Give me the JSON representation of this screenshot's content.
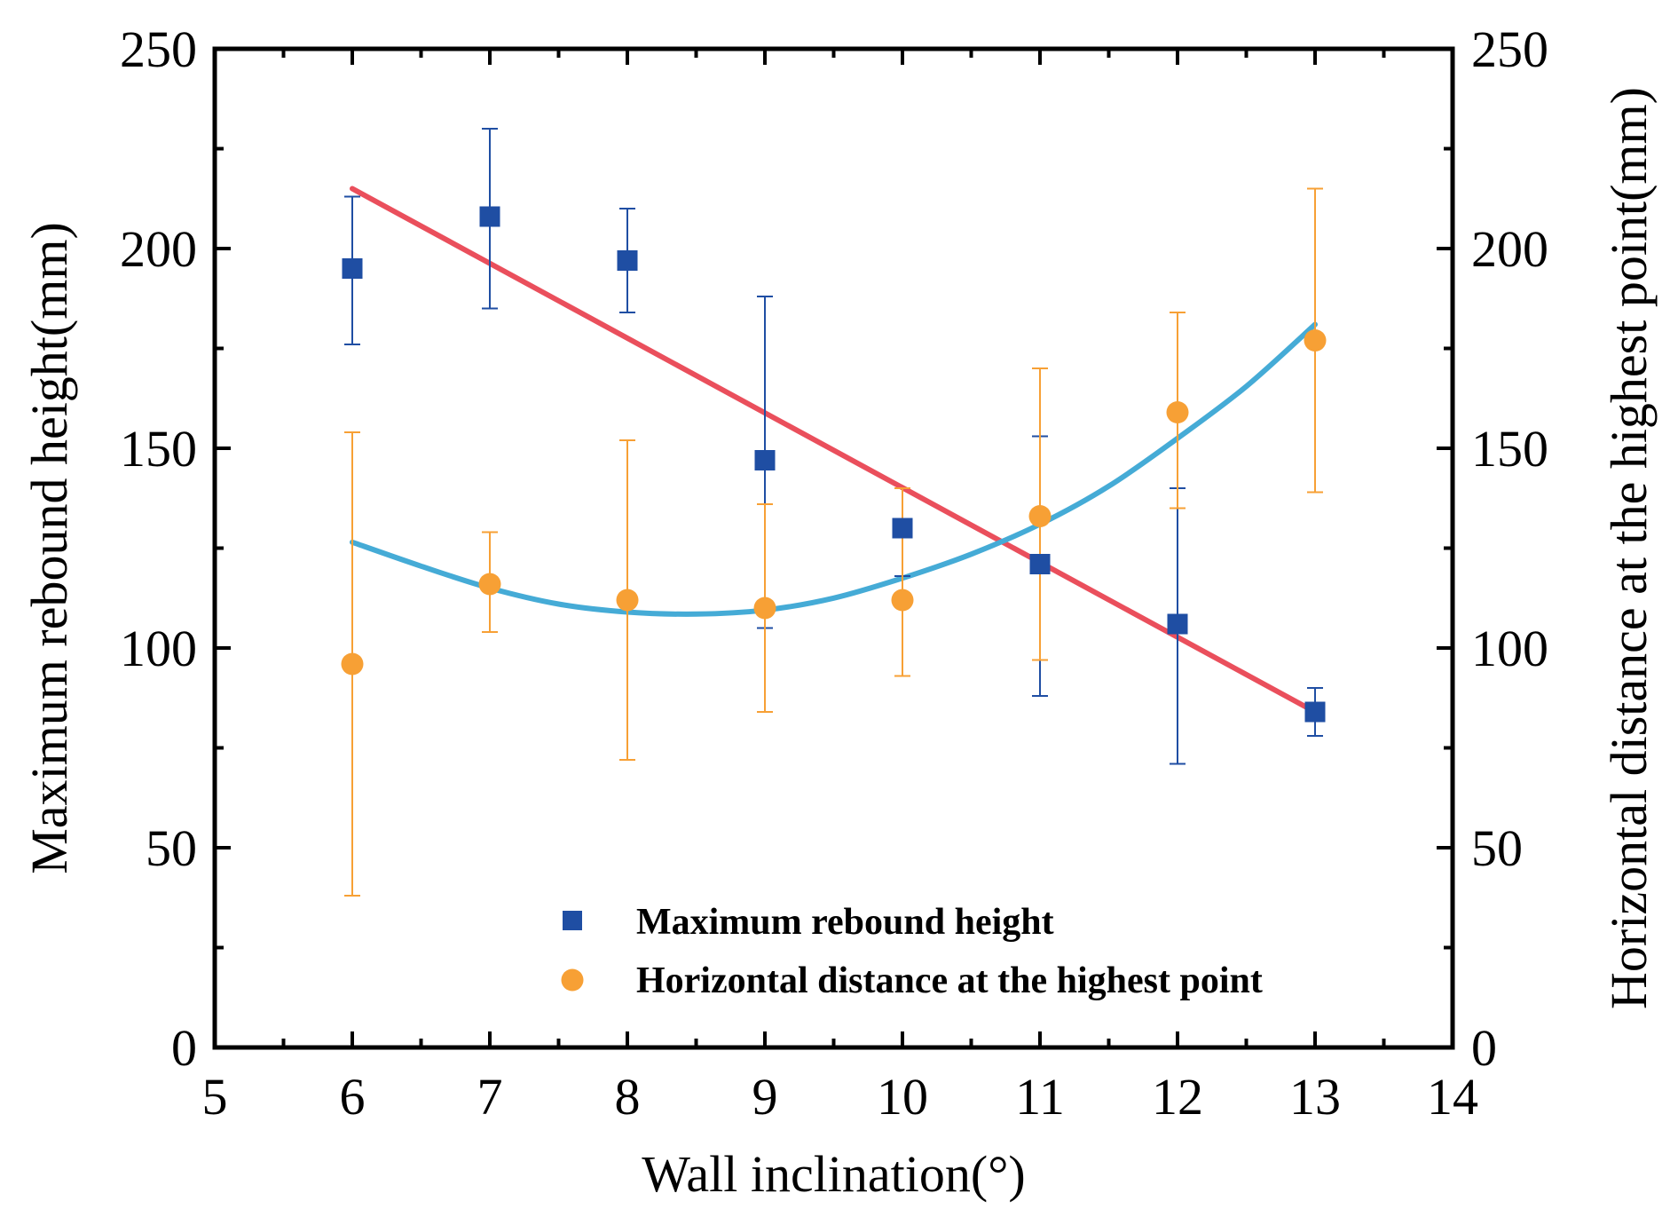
{
  "chart_data": {
    "type": "scatter",
    "title": "",
    "xlabel": "Wall inclination(°)",
    "ylabel_left": "Maximum rebound height(mm)",
    "ylabel_right": "Horizontal distance at the highest point(mm)",
    "xlim": [
      5,
      14
    ],
    "ylim": [
      0,
      250
    ],
    "y2lim": [
      0,
      250
    ],
    "x_ticks": [
      5,
      6,
      7,
      8,
      9,
      10,
      11,
      12,
      13,
      14
    ],
    "y_ticks": [
      0,
      50,
      100,
      150,
      200,
      250
    ],
    "y2_ticks": [
      0,
      50,
      100,
      150,
      200,
      250
    ],
    "grid": false,
    "legend_position": "bottom-right",
    "series": [
      {
        "name": "Maximum rebound height",
        "marker": "square",
        "color": "#1f4ea3",
        "axis": "left",
        "x": [
          6,
          7,
          8,
          9,
          10,
          11,
          12,
          13
        ],
        "y": [
          195,
          208,
          197,
          147,
          130,
          121,
          106,
          84
        ],
        "err_low": [
          176,
          185,
          184,
          105,
          118,
          88,
          71,
          78
        ],
        "err_high": [
          213,
          230,
          210,
          188,
          140,
          153,
          140,
          90
        ]
      },
      {
        "name": "Horizontal distance at the highest point",
        "marker": "circle",
        "color": "#f7a035",
        "axis": "right",
        "x": [
          6,
          7,
          8,
          9,
          10,
          11,
          12,
          13
        ],
        "y": [
          96,
          116,
          112,
          110,
          112,
          133,
          159,
          177
        ],
        "err_low": [
          38,
          104,
          72,
          84,
          93,
          97,
          135,
          139
        ],
        "err_high": [
          154,
          129,
          152,
          136,
          140,
          170,
          184,
          215
        ]
      }
    ],
    "fits": [
      {
        "name": "linear fit",
        "color": "#ea4f5c",
        "x": [
          6,
          13
        ],
        "y": [
          215,
          84
        ]
      },
      {
        "name": "quadratic fit",
        "color": "#45abd6",
        "x": [
          6,
          6.5,
          7,
          7.5,
          8,
          8.5,
          9,
          9.5,
          10,
          10.5,
          11,
          11.5,
          12,
          12.5,
          13
        ],
        "y": [
          126.5,
          120.5,
          115,
          111,
          109,
          108.5,
          109.5,
          112.5,
          117.5,
          123.5,
          131,
          140.5,
          152.5,
          165.5,
          181
        ]
      }
    ]
  }
}
